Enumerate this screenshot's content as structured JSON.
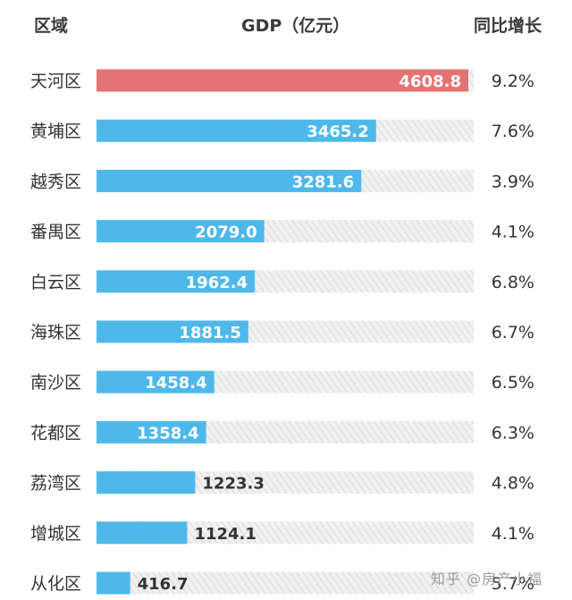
{
  "headers": {
    "region": "区域",
    "gdp": "GDP（亿元）",
    "growth": "同比增长"
  },
  "colors": {
    "highlight": "#e57373",
    "bar": "#4fb8ea",
    "track": "#e6e6e6",
    "label_text": "#333333",
    "bar_text": "#ffffff"
  },
  "chart_data": {
    "type": "bar",
    "orientation": "horizontal",
    "title": "GDP（亿元）",
    "xlabel": "",
    "ylabel": "区域",
    "xlim": [
      0,
      4608.8
    ],
    "categories": [
      "天河区",
      "黄埔区",
      "越秀区",
      "番禺区",
      "白云区",
      "海珠区",
      "南沙区",
      "花都区",
      "荔湾区",
      "增城区",
      "从化区"
    ],
    "values": [
      4608.8,
      3465.2,
      3281.6,
      2079.0,
      1962.4,
      1881.5,
      1458.4,
      1358.4,
      1223.3,
      1124.1,
      416.7
    ],
    "value_labels": [
      "4608.8",
      "3465.2",
      "3281.6",
      "2079.0",
      "1962.4",
      "1881.5",
      "1458.4",
      "1358.4",
      "1223.3",
      "1124.1",
      "416.7"
    ],
    "growth": [
      "9.2%",
      "7.6%",
      "3.9%",
      "4.1%",
      "6.8%",
      "6.7%",
      "6.5%",
      "6.3%",
      "4.8%",
      "4.1%",
      "5.7%"
    ],
    "highlight_index": 0
  },
  "watermark": "知乎 @房产小福"
}
